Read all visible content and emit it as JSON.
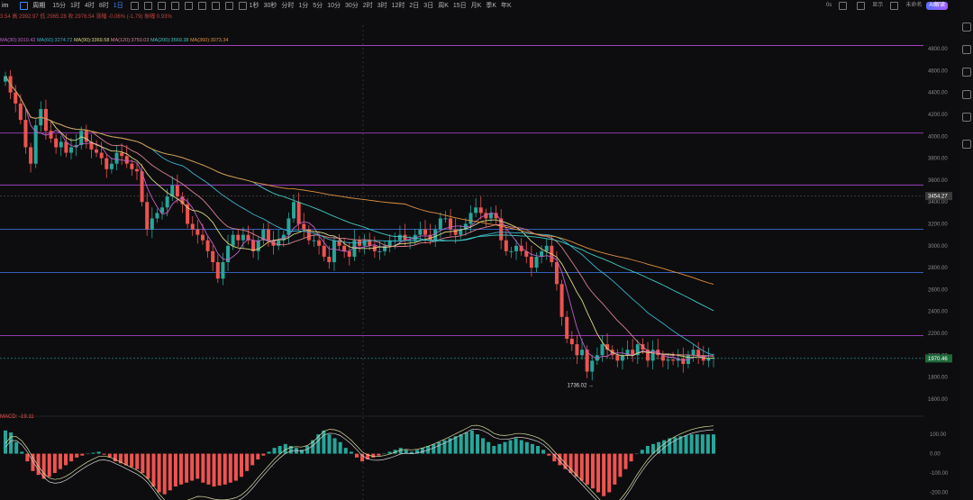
{
  "toolbar": {
    "symbol": "im",
    "period": "周期",
    "timeframes": [
      "15分",
      "1时",
      "4时",
      "8时",
      "1日",
      "1秒",
      "30秒",
      "分时",
      "1分",
      "5分",
      "10分",
      "30分",
      "2时",
      "3时",
      "12时",
      "2日",
      "3日",
      "周K",
      "15日",
      "月K",
      "季K",
      "年K"
    ],
    "active_timeframe": "1日",
    "right": {
      "indicator": "0s",
      "display": "显示",
      "unnamed": "未命名",
      "ai": "AI解读"
    }
  },
  "ohlc_line": "3.54  高 2992.97  低 2965.28  收 2976.54  涨幅 -0.06% (-1.79)  振幅 0.93%",
  "ma_line": {
    "ma30": "MA(30):3010.42",
    "ma60": "MA(60):3274.72",
    "ma90": "MA(90):3369.58",
    "ma120": "MA(120):3750.03",
    "ma200": "MA(200):3569.38",
    "ma360": "MA(360):3073.34"
  },
  "colors": {
    "up": "#26a69a",
    "down": "#ef5350",
    "ma30": "#c060c8",
    "ma60": "#3ab0c8",
    "ma90": "#d8d880",
    "ma120": "#d88090",
    "ma200": "#40c8c0",
    "ma360": "#e09040",
    "hline_purple": "#a040c0",
    "hline_blue": "#3a6ad0"
  },
  "chart_data": [
    {
      "type": "candlestick",
      "title": "",
      "ylim": [
        1500,
        4900
      ],
      "y_ticks": [
        1600,
        1800,
        2000,
        2200,
        2400,
        2600,
        2800,
        3000,
        3200,
        3400,
        3600,
        3800,
        4000,
        4200,
        4400,
        4600,
        4800
      ],
      "y_tick_labels": [
        "1600.00",
        "1800.00",
        "2000.00",
        "2200.00",
        "2400.00",
        "2600.00",
        "2800.00",
        "3000.00",
        "3200.00",
        "3400.00",
        "3600.00",
        "3800.00",
        "4000.00",
        "4200.00",
        "4400.00",
        "4600.00",
        "4800.00"
      ],
      "horizontal_lines": [
        {
          "value": 4830,
          "color": "hline_purple"
        },
        {
          "value": 4030,
          "color": "hline_purple"
        },
        {
          "value": 3555,
          "color": "hline_purple"
        },
        {
          "value": 3150,
          "color": "hline_blue"
        },
        {
          "value": 2755,
          "color": "hline_blue"
        },
        {
          "value": 2180,
          "color": "hline_purple"
        }
      ],
      "price_labels": [
        {
          "value": 3454.27,
          "text": "3454.27",
          "style": "gray"
        },
        {
          "value": 1970.46,
          "text": "1970.46",
          "style": "current"
        }
      ],
      "low_marker": {
        "value": 1736.02,
        "text": "1736.02"
      },
      "closes": [
        4550,
        4400,
        4300,
        4150,
        3900,
        3750,
        4100,
        4250,
        4050,
        3980,
        3900,
        3950,
        3850,
        3900,
        3920,
        4050,
        3950,
        3880,
        3850,
        3800,
        3700,
        3750,
        3850,
        3820,
        3750,
        3700,
        3680,
        3400,
        3150,
        3250,
        3300,
        3350,
        3450,
        3550,
        3450,
        3380,
        3200,
        3150,
        3100,
        3050,
        2950,
        2850,
        2700,
        2850,
        3000,
        3100,
        3050,
        3100,
        3050,
        2950,
        3050,
        3150,
        3050,
        3000,
        3050,
        3100,
        3250,
        3400,
        3200,
        3150,
        3050,
        3050,
        3000,
        2900,
        2850,
        3050,
        3000,
        2950,
        2900,
        3050,
        3000,
        3050,
        3000,
        2950,
        2950,
        3000,
        3050,
        3050,
        3100,
        3050,
        3050,
        3100,
        3150,
        3100,
        3050,
        3150,
        3250,
        3250,
        3150,
        3100,
        3150,
        3200,
        3300,
        3350,
        3300,
        3250,
        3300,
        3250,
        3050,
        2950,
        2950,
        3000,
        2950,
        2900,
        2800,
        2900,
        2950,
        3000,
        2850,
        2650,
        2350,
        2150,
        2100,
        2000,
        2050,
        1850,
        1950,
        2000,
        2100,
        2050,
        2000,
        1950,
        2000,
        2050,
        2000,
        2100,
        2050,
        1950,
        2050,
        2000,
        1950,
        1960,
        1950,
        1970,
        1920,
        2000,
        2050,
        2000,
        1950,
        1970,
        1976
      ]
    },
    {
      "type": "bar",
      "title": "MACD",
      "label": "MACD: -19.11",
      "ylim": [
        -240,
        180
      ],
      "y_ticks": [
        -200,
        -100,
        0,
        100
      ],
      "y_tick_labels": [
        "-200.00",
        "-100.00",
        "0.00",
        "100.00"
      ],
      "histogram": [
        120,
        110,
        60,
        10,
        -40,
        -90,
        -110,
        -130,
        -120,
        -100,
        -80,
        -60,
        -40,
        -20,
        -10,
        0,
        5,
        10,
        -5,
        -20,
        -40,
        -50,
        -60,
        -70,
        -80,
        -100,
        -130,
        -170,
        -200,
        -210,
        -190,
        -170,
        -160,
        -150,
        -140,
        -130,
        -150,
        -160,
        -170,
        -165,
        -160,
        -150,
        -140,
        -120,
        -90,
        -60,
        -30,
        -10,
        10,
        30,
        40,
        50,
        40,
        30,
        20,
        40,
        70,
        100,
        120,
        100,
        80,
        60,
        30,
        10,
        -20,
        -40,
        -30,
        -20,
        -10,
        0,
        10,
        20,
        30,
        20,
        10,
        20,
        30,
        40,
        50,
        60,
        70,
        80,
        90,
        100,
        110,
        120,
        100,
        80,
        60,
        40,
        50,
        60,
        70,
        80,
        70,
        60,
        50,
        40,
        20,
        -10,
        -40,
        -60,
        -80,
        -100,
        -120,
        -140,
        -160,
        -180,
        -200,
        -220,
        -200,
        -160,
        -120,
        -80,
        -40,
        0,
        20,
        40,
        50,
        60,
        70,
        80,
        85,
        90,
        95,
        100,
        100,
        100,
        100,
        100
      ]
    }
  ]
}
